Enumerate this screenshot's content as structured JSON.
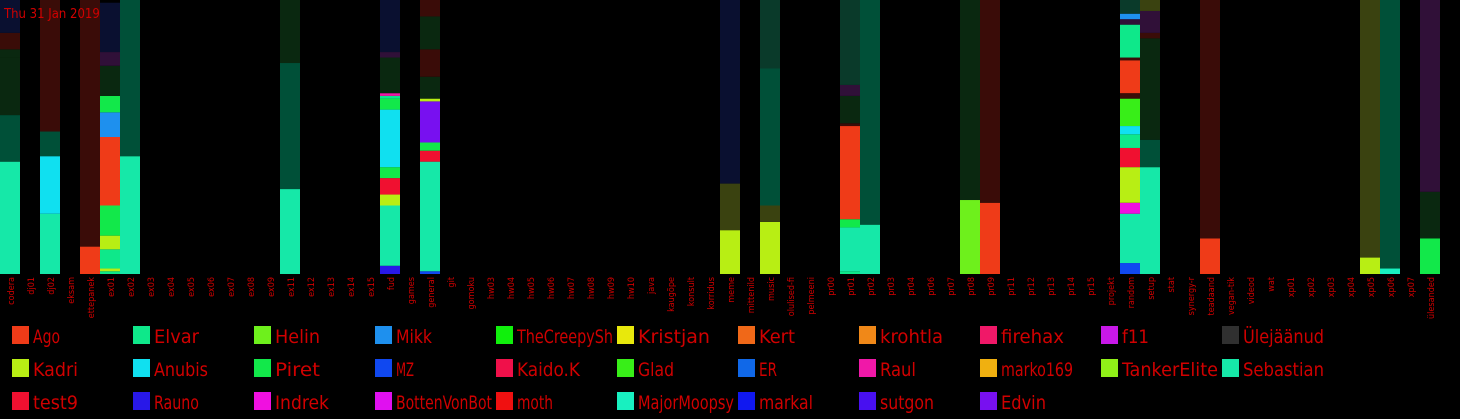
{
  "date_label": "Thu 31 Jan 2019",
  "colors": {
    "background": "#000000",
    "label_red": "#d00000",
    "dark": [
      "#0a2810",
      "#005038",
      "#0a3a2a",
      "#3a0c08",
      "#0a1030",
      "#301038",
      "#3a4210"
    ]
  },
  "legend": [
    {
      "name": "Ago",
      "color": "#ef3b18"
    },
    {
      "name": "Elvar",
      "color": "#0ee88a"
    },
    {
      "name": "Helin",
      "color": "#6ef01c"
    },
    {
      "name": "Mikk",
      "color": "#1e90ee"
    },
    {
      "name": "TheCreepySh",
      "color": "#10f00c"
    },
    {
      "name": "Kristjan",
      "color": "#e8e80c"
    },
    {
      "name": "Kert",
      "color": "#f06818"
    },
    {
      "name": "krohtla",
      "color": "#f08818"
    },
    {
      "name": "firehax",
      "color": "#f01868"
    },
    {
      "name": "f11",
      "color": "#c818e8"
    },
    {
      "name": "Ülejäänud",
      "color": "#303030"
    },
    {
      "name": "Kadri",
      "color": "#b8ee14"
    },
    {
      "name": "Anubis",
      "color": "#10e0f0"
    },
    {
      "name": "Piret",
      "color": "#12e84a"
    },
    {
      "name": "MZ",
      "color": "#1048f0"
    },
    {
      "name": "Kaido.K",
      "color": "#f0104a"
    },
    {
      "name": "Glad",
      "color": "#38ee18"
    },
    {
      "name": "ER",
      "color": "#1068e8"
    },
    {
      "name": "Raul",
      "color": "#f018a8"
    },
    {
      "name": "marko169",
      "color": "#f0b010"
    },
    {
      "name": "TankerElite",
      "color": "#90f018"
    },
    {
      "name": "Sebastian",
      "color": "#16e8a8"
    },
    {
      "name": "test9",
      "color": "#f01030"
    },
    {
      "name": "Rauno",
      "color": "#2818e8"
    },
    {
      "name": "Indrek",
      "color": "#f010e0"
    },
    {
      "name": "BottenVonBot",
      "color": "#e010f0"
    },
    {
      "name": "moth",
      "color": "#f01010"
    },
    {
      "name": "MajorMoopsy",
      "color": "#18f0c0"
    },
    {
      "name": "markal",
      "color": "#1018f0"
    },
    {
      "name": "sutgon",
      "color": "#4810f0"
    },
    {
      "name": "Edvin",
      "color": "#7810f0"
    }
  ],
  "chart_data": {
    "type": "bar",
    "stacked": true,
    "scale": "normalized 0–1 per channel (unlabeled axis)",
    "categories": [
      "codera",
      "dj01",
      "dj02",
      "eksam",
      "ettepanek",
      "ex01",
      "ex02",
      "ex03",
      "ex04",
      "ex05",
      "ex06",
      "ex07",
      "ex08",
      "ex09",
      "ex11",
      "ex12",
      "ex13",
      "ex14",
      "ex15",
      "fud",
      "games",
      "general",
      "git",
      "gomoku",
      "hw03",
      "hw04",
      "hw05",
      "hw06",
      "hw07",
      "hw08",
      "hw09",
      "hw10",
      "java",
      "kaugõpe",
      "konsult",
      "korridus",
      "meme",
      "mittenild",
      "music",
      "olulised-fi",
      "pelmeeni",
      "pr00",
      "pr01",
      "pr02",
      "pr03",
      "pr04",
      "pr06",
      "pr07",
      "pr08",
      "pr09",
      "pr11",
      "pr12",
      "pr13",
      "pr14",
      "pr15",
      "projekt",
      "random",
      "setup",
      "stat",
      "synergy-r",
      "teadaand",
      "vegan-tik",
      "videod",
      "wat",
      "xp01",
      "xp02",
      "xp03",
      "xp04",
      "xp05",
      "xp06",
      "xp07",
      "ülesanded"
    ],
    "stacks": {
      "codera": [
        [
          "Sebastian",
          0.41
        ],
        [
          "dark:1",
          0.17
        ],
        [
          "dark:0",
          0.21
        ],
        [
          "dark:0",
          0.03
        ],
        [
          "dark:3",
          0.06
        ],
        [
          "dark:4",
          0.12
        ]
      ],
      "dj02": [
        [
          "Sebastian",
          0.22
        ],
        [
          "Anubis",
          0.21
        ],
        [
          "dark:1",
          0.09
        ],
        [
          "dark:3",
          0.48
        ]
      ],
      "ettepanek": [
        [
          "Ago",
          0.1
        ],
        [
          "dark:3",
          0.9
        ]
      ],
      "ex01": [
        [
          "Elvar",
          0.01
        ],
        [
          "Kadri",
          0.01
        ],
        [
          "Elvar",
          0.07
        ],
        [
          "Kadri",
          0.05
        ],
        [
          "Piret",
          0.11
        ],
        [
          "Ago",
          0.25
        ],
        [
          "Mikk",
          0.09
        ],
        [
          "Piret",
          0.06
        ],
        [
          "dark:0",
          0.11
        ],
        [
          "dark:5",
          0.05
        ],
        [
          "dark:4",
          0.18
        ]
      ],
      "ex02": [
        [
          "Sebastian",
          0.43
        ],
        [
          "dark:1",
          0.57
        ]
      ],
      "ex11": [
        [
          "Sebastian",
          0.31
        ],
        [
          "dark:1",
          0.46
        ],
        [
          "dark:0",
          0.23
        ]
      ],
      "fud": [
        [
          "Rauno",
          0.03
        ],
        [
          "Sebastian",
          0.22
        ],
        [
          "Kadri",
          0.04
        ],
        [
          "test9",
          0.06
        ],
        [
          "Piret",
          0.04
        ],
        [
          "Anubis",
          0.21
        ],
        [
          "Piret",
          0.04
        ],
        [
          "Elvar",
          0.01
        ],
        [
          "Raul",
          0.01
        ],
        [
          "dark:0",
          0.13
        ],
        [
          "dark:5",
          0.02
        ],
        [
          "dark:4",
          0.19
        ]
      ],
      "general": [
        [
          "MZ",
          0.01
        ],
        [
          "Sebastian",
          0.4
        ],
        [
          "test9",
          0.04
        ],
        [
          "Piret",
          0.03
        ],
        [
          "Edvin",
          0.15
        ],
        [
          "Kadri",
          0.01
        ],
        [
          "dark:0",
          0.08
        ],
        [
          "dark:3",
          0.1
        ],
        [
          "dark:0",
          0.12
        ],
        [
          "dark:3",
          0.06
        ]
      ],
      "meme": [
        [
          "Kadri",
          0.16
        ],
        [
          "dark:6",
          0.17
        ],
        [
          "dark:4",
          0.67
        ]
      ],
      "music": [
        [
          "Kadri",
          0.19
        ],
        [
          "dark:6",
          0.06
        ],
        [
          "dark:1",
          0.5
        ],
        [
          "dark:2",
          0.25
        ]
      ],
      "pr01": [
        [
          "Elvar",
          0.01
        ],
        [
          "Sebastian",
          0.16
        ],
        [
          "Piret",
          0.03
        ],
        [
          "Ago",
          0.34
        ],
        [
          "dark:3",
          0.01
        ],
        [
          "dark:0",
          0.1
        ],
        [
          "dark:5",
          0.04
        ],
        [
          "dark:2",
          0.31
        ]
      ],
      "pr02": [
        [
          "Sebastian",
          0.18
        ],
        [
          "dark:1",
          0.82
        ]
      ],
      "pr08": [
        [
          "Helin",
          0.27
        ],
        [
          "dark:0",
          0.73
        ]
      ],
      "pr09": [
        [
          "Ago",
          0.26
        ],
        [
          "dark:3",
          0.74
        ]
      ],
      "random": [
        [
          "MZ",
          0.04
        ],
        [
          "Sebastian",
          0.18
        ],
        [
          "Indrek",
          0.04
        ],
        [
          "Kadri",
          0.13
        ],
        [
          "test9",
          0.07
        ],
        [
          "Elvar",
          0.05
        ],
        [
          "Anubis",
          0.03
        ],
        [
          "Glad",
          0.1
        ],
        [
          "dark:3",
          0.02
        ],
        [
          "Ago",
          0.12
        ],
        [
          "dark:3",
          0.01
        ],
        [
          "Elvar",
          0.12
        ],
        [
          "dark:5",
          0.02
        ],
        [
          "Mikk",
          0.02
        ],
        [
          "dark:2",
          0.05
        ]
      ],
      "setup": [
        [
          "Sebastian",
          0.39
        ],
        [
          "dark:1",
          0.1
        ],
        [
          "dark:0",
          0.37
        ],
        [
          "dark:3",
          0.02
        ],
        [
          "dark:5",
          0.08
        ],
        [
          "dark:6",
          0.04
        ]
      ],
      "teadaand": [
        [
          "Ago",
          0.13
        ],
        [
          "dark:3",
          0.87
        ]
      ],
      "xp05": [
        [
          "Kadri",
          0.06
        ],
        [
          "dark:6",
          0.94
        ]
      ],
      "xp06": [
        [
          "MajorMoopsy",
          0.02
        ],
        [
          "dark:1",
          0.98
        ]
      ],
      "ülesanded": [
        [
          "Piret",
          0.13
        ],
        [
          "dark:0",
          0.17
        ],
        [
          "dark:5",
          0.7
        ]
      ]
    }
  }
}
